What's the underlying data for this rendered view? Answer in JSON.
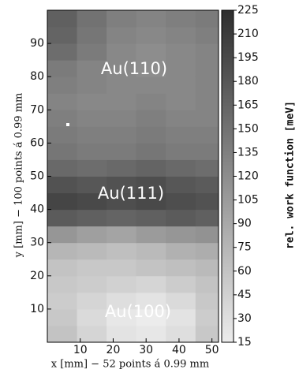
{
  "chart_data": {
    "type": "heatmap",
    "xlabel": "x [mm] − 52 points á 0.99 mm",
    "ylabel": "y [mm] − 100 points á 0.99 mm",
    "colorbar_label": "rel. work function [meV]",
    "annotations": [
      "Au(110)",
      "Au(111)",
      "Au(100)"
    ],
    "xbins": [
      0,
      9,
      18,
      27,
      36,
      45,
      52
    ],
    "ybins": [
      0,
      5,
      10,
      15,
      20,
      25,
      30,
      35,
      40,
      45,
      50,
      55,
      60,
      65,
      70,
      75,
      80,
      85,
      90,
      95,
      100
    ],
    "z": [
      [
        60,
        40,
        25,
        20,
        30,
        55
      ],
      [
        55,
        35,
        20,
        15,
        25,
        50
      ],
      [
        50,
        40,
        30,
        25,
        35,
        55
      ],
      [
        55,
        50,
        45,
        40,
        50,
        60
      ],
      [
        60,
        55,
        55,
        60,
        65,
        70
      ],
      [
        75,
        70,
        65,
        70,
        80,
        85
      ],
      [
        110,
        100,
        95,
        105,
        110,
        115
      ],
      [
        175,
        170,
        165,
        170,
        175,
        170
      ],
      [
        200,
        195,
        190,
        195,
        190,
        185
      ],
      [
        185,
        180,
        185,
        190,
        180,
        175
      ],
      [
        160,
        155,
        160,
        165,
        160,
        155
      ],
      [
        145,
        140,
        140,
        145,
        140,
        140
      ],
      [
        140,
        135,
        135,
        140,
        135,
        135
      ],
      [
        135,
        130,
        130,
        135,
        130,
        130
      ],
      [
        130,
        125,
        125,
        130,
        125,
        130
      ],
      [
        135,
        130,
        125,
        125,
        125,
        130
      ],
      [
        140,
        130,
        125,
        120,
        125,
        130
      ],
      [
        155,
        140,
        125,
        120,
        125,
        130
      ],
      [
        165,
        145,
        130,
        125,
        130,
        135
      ],
      [
        170,
        150,
        135,
        130,
        135,
        140
      ]
    ],
    "xlim": [
      0,
      52
    ],
    "ylim": [
      0,
      100
    ],
    "xticks": [
      10,
      20,
      30,
      40,
      50
    ],
    "yticks": [
      10,
      20,
      30,
      40,
      50,
      60,
      70,
      80,
      90
    ],
    "clim": [
      15,
      225
    ],
    "cticks": [
      15,
      30,
      45,
      60,
      75,
      90,
      105,
      120,
      135,
      150,
      165,
      180,
      195,
      210,
      225
    ],
    "colormap": [
      "#ececec",
      "#2e2e2e"
    ]
  }
}
